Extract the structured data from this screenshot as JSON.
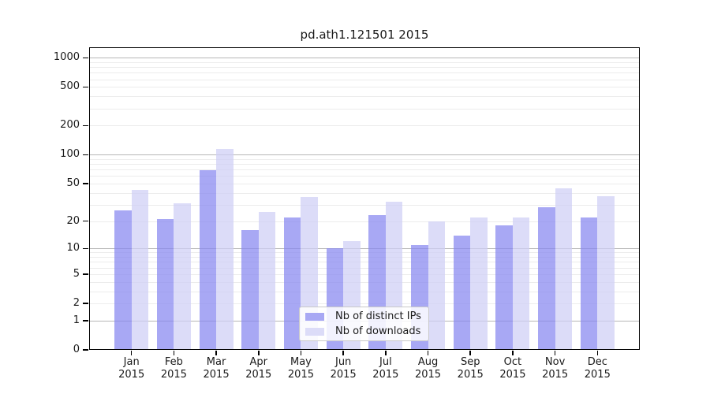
{
  "figure": {
    "title": "pd.ath1.121501 2015"
  },
  "chart_data": {
    "type": "bar",
    "title": "pd.ath1.121501 2015",
    "x_categories": [
      "Jan",
      "Feb",
      "Mar",
      "Apr",
      "May",
      "Jun",
      "Jul",
      "Aug",
      "Sep",
      "Oct",
      "Nov",
      "Dec"
    ],
    "x_year": "2015",
    "series": [
      {
        "name": "Nb of distinct IPs",
        "color": "#a8a8f4",
        "values": [
          26,
          21,
          69,
          16,
          22,
          10,
          23,
          11,
          14,
          18,
          28,
          22
        ]
      },
      {
        "name": "Nb of downloads",
        "color": "#dcdcf8",
        "values": [
          43,
          31,
          115,
          25,
          36,
          12,
          32,
          20,
          22,
          22,
          45,
          37
        ]
      }
    ],
    "y_scale": "log(1+x)",
    "y_ticks": [
      0,
      1,
      2,
      5,
      10,
      20,
      50,
      100,
      200,
      500,
      1000
    ],
    "ylim": [
      0,
      1280
    ],
    "xlim": [
      -1,
      12
    ],
    "grid": true,
    "legend": {
      "position": "lower-center",
      "entries": [
        "Nb of distinct IPs",
        "Nb of downloads"
      ]
    },
    "colors": {
      "grid_major": "#b6b6b6",
      "grid_minor": "#ececec",
      "spine": "#000000",
      "text": "#1a1a1a",
      "background": "#ffffff"
    }
  }
}
